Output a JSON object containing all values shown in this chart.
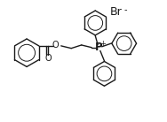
{
  "bg_color": "#ffffff",
  "line_color": "#1a1a1a",
  "line_width": 1.0,
  "br_label": "Br",
  "br_minus": "-",
  "p_label": "P",
  "p_plus": "+",
  "o_label": "O",
  "xlim": [
    0,
    10
  ],
  "ylim": [
    0,
    7
  ]
}
